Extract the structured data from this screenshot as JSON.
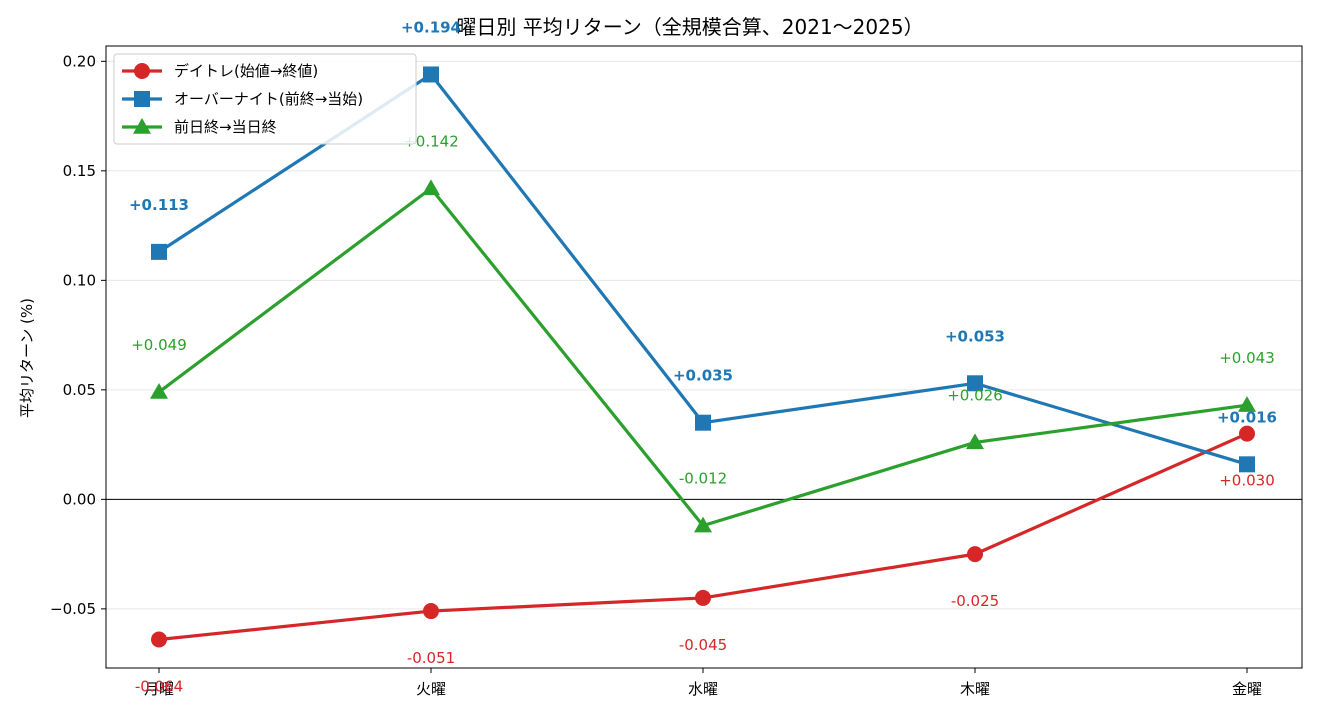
{
  "chart_data": {
    "type": "line",
    "title": "曜日別 平均リターン（全規模合算、2021〜2025）",
    "xlabel": "",
    "ylabel": "平均リターン (%)",
    "categories": [
      "月曜",
      "火曜",
      "水曜",
      "木曜",
      "金曜"
    ],
    "ylim": [
      -0.077,
      0.207
    ],
    "yticks": [
      -0.05,
      0.0,
      0.05,
      0.1,
      0.15,
      0.2
    ],
    "ytick_labels": [
      "−0.05",
      "0.00",
      "0.05",
      "0.10",
      "0.15",
      "0.20"
    ],
    "grid": "horizontal",
    "legend_position": "top-left",
    "zero_line": true,
    "series": [
      {
        "name": "デイトレ(始値→終値)",
        "color": "#d62728",
        "marker": "circle",
        "values": [
          -0.064,
          -0.051,
          -0.045,
          -0.025,
          0.03
        ],
        "labels": [
          "-0.064",
          "-0.051",
          "-0.045",
          "-0.025",
          "+0.030"
        ],
        "label_position": "below",
        "bold_labels": false
      },
      {
        "name": "オーバーナイト(前終→当始)",
        "color": "#1f77b4",
        "marker": "square",
        "values": [
          0.113,
          0.194,
          0.035,
          0.053,
          0.016
        ],
        "labels": [
          "+0.113",
          "+0.194",
          "+0.035",
          "+0.053",
          "+0.016"
        ],
        "label_position": "above",
        "bold_labels": true
      },
      {
        "name": "前日終→当日終",
        "color": "#2ca02c",
        "marker": "triangle",
        "values": [
          0.049,
          0.142,
          -0.012,
          0.026,
          0.043
        ],
        "labels": [
          "+0.049",
          "+0.142",
          "-0.012",
          "+0.026",
          "+0.043"
        ],
        "label_position": "above",
        "bold_labels": false
      }
    ]
  }
}
